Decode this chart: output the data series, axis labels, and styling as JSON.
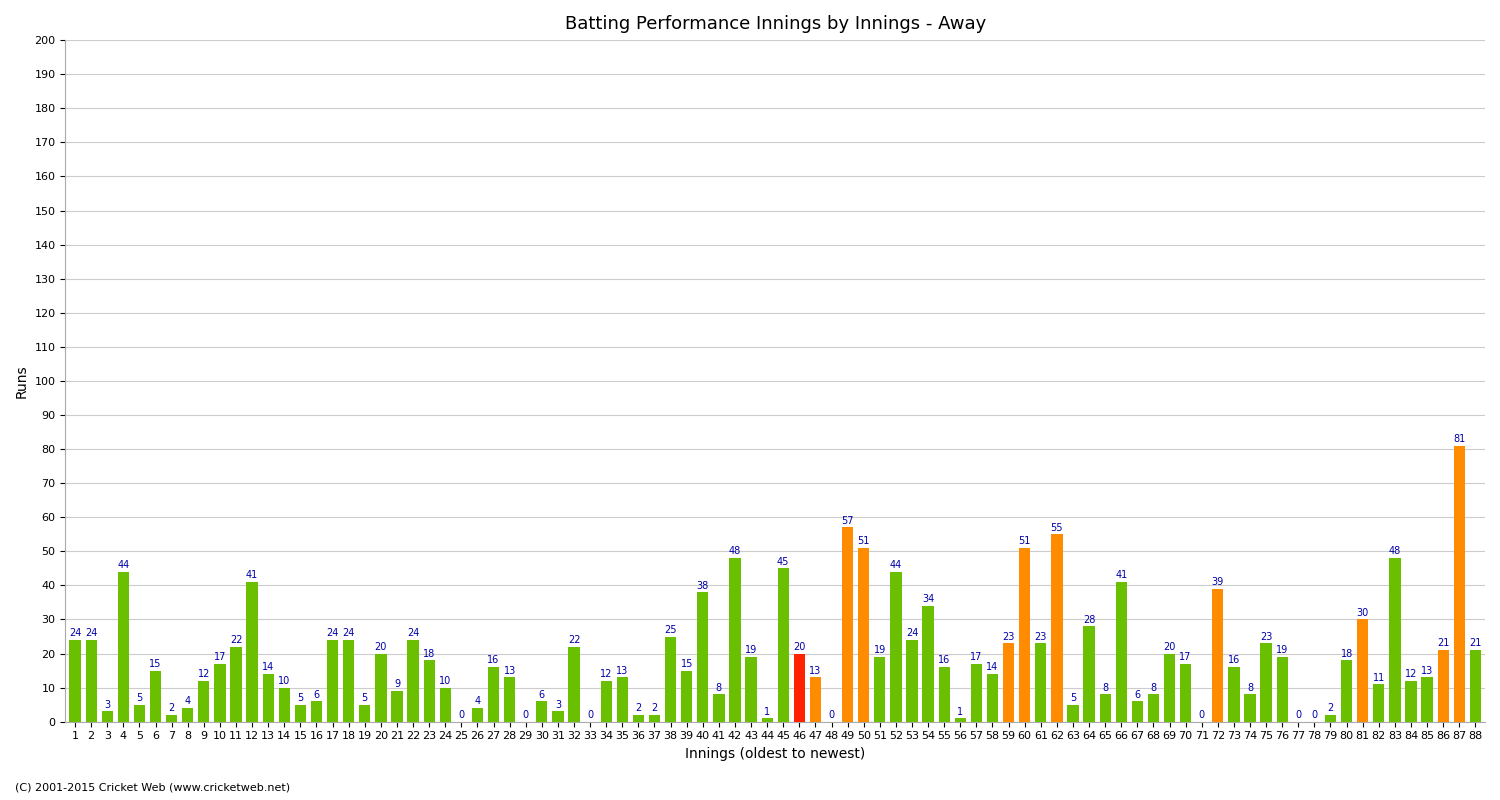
{
  "title": "Batting Performance Innings by Innings - Away",
  "xlabel": "Innings (oldest to newest)",
  "ylabel": "Runs",
  "ylim": [
    0,
    200
  ],
  "yticks": [
    0,
    10,
    20,
    30,
    40,
    50,
    60,
    70,
    80,
    90,
    100,
    110,
    120,
    130,
    140,
    150,
    160,
    170,
    180,
    190,
    200
  ],
  "innings": [
    1,
    2,
    3,
    4,
    5,
    6,
    7,
    8,
    9,
    10,
    11,
    12,
    13,
    14,
    15,
    16,
    17,
    18,
    19,
    20,
    21,
    22,
    23,
    24,
    25,
    26,
    27,
    28,
    29,
    30,
    31,
    32,
    33,
    34,
    35,
    36,
    37,
    38,
    39,
    40,
    41,
    42,
    43,
    44,
    45,
    46,
    47,
    48,
    49,
    50,
    51,
    52,
    53,
    54,
    55,
    56,
    57,
    58,
    59,
    60,
    61,
    62,
    63,
    64,
    65,
    66,
    67,
    68,
    69,
    70,
    71,
    72,
    73,
    74,
    75,
    76,
    77,
    78,
    79,
    80,
    81,
    82,
    83,
    84,
    85,
    86,
    87,
    88
  ],
  "values": [
    24,
    24,
    3,
    44,
    5,
    15,
    2,
    4,
    12,
    17,
    22,
    41,
    14,
    10,
    5,
    6,
    24,
    24,
    5,
    20,
    9,
    24,
    18,
    10,
    0,
    4,
    16,
    13,
    0,
    6,
    3,
    22,
    0,
    12,
    13,
    2,
    2,
    25,
    15,
    38,
    8,
    48,
    19,
    1,
    45,
    20,
    13,
    0,
    57,
    51,
    19,
    44,
    24,
    34,
    16,
    1,
    17,
    14,
    23,
    51,
    23,
    55,
    5,
    28,
    8,
    41,
    6,
    8,
    20,
    17,
    0,
    39,
    16,
    8,
    23,
    19,
    0,
    0,
    2,
    18,
    30,
    11,
    48,
    12,
    13,
    21,
    81,
    21
  ],
  "colors": [
    "#6abf00",
    "#6abf00",
    "#6abf00",
    "#6abf00",
    "#6abf00",
    "#6abf00",
    "#6abf00",
    "#6abf00",
    "#6abf00",
    "#6abf00",
    "#6abf00",
    "#6abf00",
    "#6abf00",
    "#6abf00",
    "#6abf00",
    "#6abf00",
    "#6abf00",
    "#6abf00",
    "#6abf00",
    "#6abf00",
    "#6abf00",
    "#6abf00",
    "#6abf00",
    "#6abf00",
    "#6abf00",
    "#6abf00",
    "#6abf00",
    "#6abf00",
    "#6abf00",
    "#6abf00",
    "#6abf00",
    "#6abf00",
    "#6abf00",
    "#6abf00",
    "#6abf00",
    "#6abf00",
    "#6abf00",
    "#6abf00",
    "#6abf00",
    "#6abf00",
    "#6abf00",
    "#6abf00",
    "#6abf00",
    "#6abf00",
    "#6abf00",
    "#ff2200",
    "#ff8c00",
    "#6abf00",
    "#ff8c00",
    "#ff8c00",
    "#6abf00",
    "#6abf00",
    "#6abf00",
    "#6abf00",
    "#6abf00",
    "#6abf00",
    "#6abf00",
    "#6abf00",
    "#ff8c00",
    "#ff8c00",
    "#6abf00",
    "#ff8c00",
    "#6abf00",
    "#6abf00",
    "#6abf00",
    "#6abf00",
    "#6abf00",
    "#6abf00",
    "#6abf00",
    "#6abf00",
    "#6abf00",
    "#ff8c00",
    "#6abf00",
    "#6abf00",
    "#6abf00",
    "#6abf00",
    "#6abf00",
    "#6abf00",
    "#6abf00",
    "#6abf00",
    "#ff8c00",
    "#6abf00",
    "#6abf00",
    "#6abf00",
    "#6abf00",
    "#ff8c00",
    "#ff8c00",
    "#6abf00"
  ],
  "background_color": "#ffffff",
  "grid_color": "#cccccc",
  "label_color": "#0000aa",
  "bar_width": 0.7,
  "figsize": [
    15,
    8
  ],
  "dpi": 100,
  "title_fontsize": 13,
  "axis_label_fontsize": 10,
  "tick_fontsize": 8,
  "value_fontsize": 7,
  "footer": "(C) 2001-2015 Cricket Web (www.cricketweb.net)"
}
